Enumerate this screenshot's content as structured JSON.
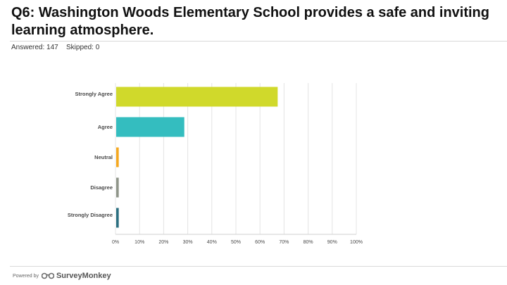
{
  "page": {
    "title": "Q6: Washington Woods Elementary School provides a safe and inviting learning atmosphere.",
    "answered": "Answered: 147",
    "skipped": "Skipped: 0"
  },
  "footer": {
    "powered_by": "Powered by",
    "brand": "SurveyMonkey",
    "logo_icon": "surveymonkey-logo-icon"
  },
  "chart_data": {
    "type": "bar",
    "orientation": "horizontal",
    "categories": [
      "Strongly Agree",
      "Agree",
      "Neutral",
      "Disagree",
      "Strongly Disagree"
    ],
    "values": [
      67.35,
      28.57,
      1.36,
      1.36,
      1.36
    ],
    "colors": [
      "#d0d92b",
      "#34bdbf",
      "#f5a81f",
      "#8f9589",
      "#2b6f80"
    ],
    "xlim": [
      0,
      100
    ],
    "ticks": [
      "0%",
      "10%",
      "20%",
      "30%",
      "40%",
      "50%",
      "60%",
      "70%",
      "80%",
      "90%",
      "100%"
    ],
    "grid": true,
    "legend": "none"
  }
}
